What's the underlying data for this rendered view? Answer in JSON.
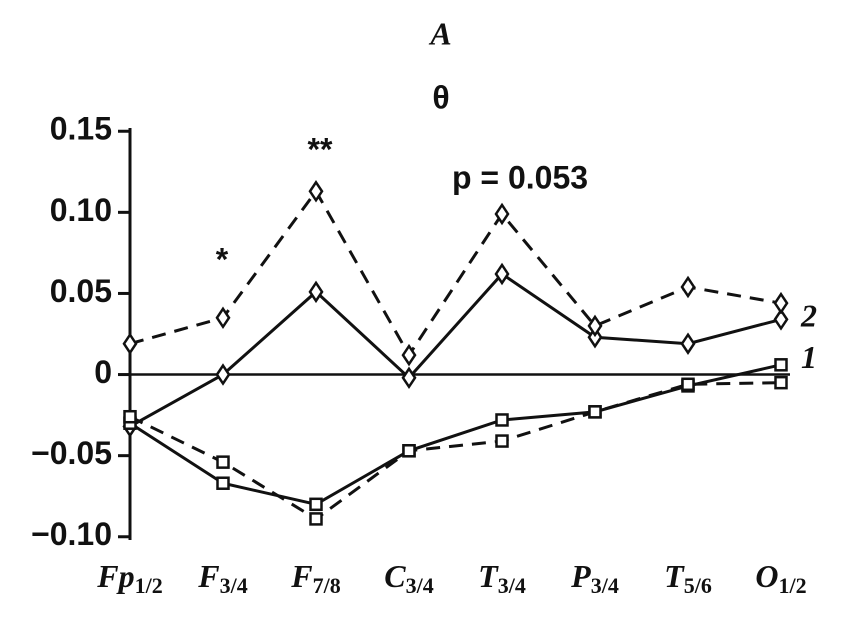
{
  "chart_data": {
    "type": "line",
    "title": "A",
    "subtitle": "θ",
    "annotations": [
      "*",
      "**",
      "p = 0.053"
    ],
    "categories": [
      "Fp1/2",
      "F3/4",
      "F7/8",
      "C3/4",
      "T3/4",
      "P3/4",
      "T5/6",
      "O1/2"
    ],
    "series": [
      {
        "name": "2",
        "marker": "diamond",
        "dash": false,
        "color": "#111",
        "values": [
          -0.032,
          0,
          0.051,
          -0.002,
          0.062,
          0.023,
          0.019,
          0.034
        ]
      },
      {
        "marker": "diamond",
        "dash": true,
        "color": "#111",
        "values": [
          0.019,
          0.035,
          0.113,
          0.012,
          0.099,
          0.03,
          0.054,
          0.044
        ]
      },
      {
        "name": "1",
        "marker": "square",
        "dash": false,
        "color": "#111",
        "values": [
          -0.03,
          -0.067,
          -0.08,
          -0.047,
          -0.028,
          -0.023,
          -0.007,
          0.006
        ]
      },
      {
        "marker": "square",
        "dash": true,
        "color": "#111",
        "values": [
          -0.026,
          -0.054,
          -0.089,
          -0.047,
          -0.041,
          -0.023,
          -0.006,
          -0.005
        ]
      }
    ],
    "ylim": [
      -0.102,
      0.152
    ],
    "yticks": [
      {
        "value": -0.1,
        "label": "−0.10"
      },
      {
        "value": -0.05,
        "label": "−0.05"
      },
      0,
      {
        "value": 0.05,
        "label": "0.05"
      },
      {
        "value": 0.1,
        "label": "0.10"
      },
      {
        "value": 0.15,
        "label": "0.15"
      }
    ],
    "zero_line": true
  }
}
